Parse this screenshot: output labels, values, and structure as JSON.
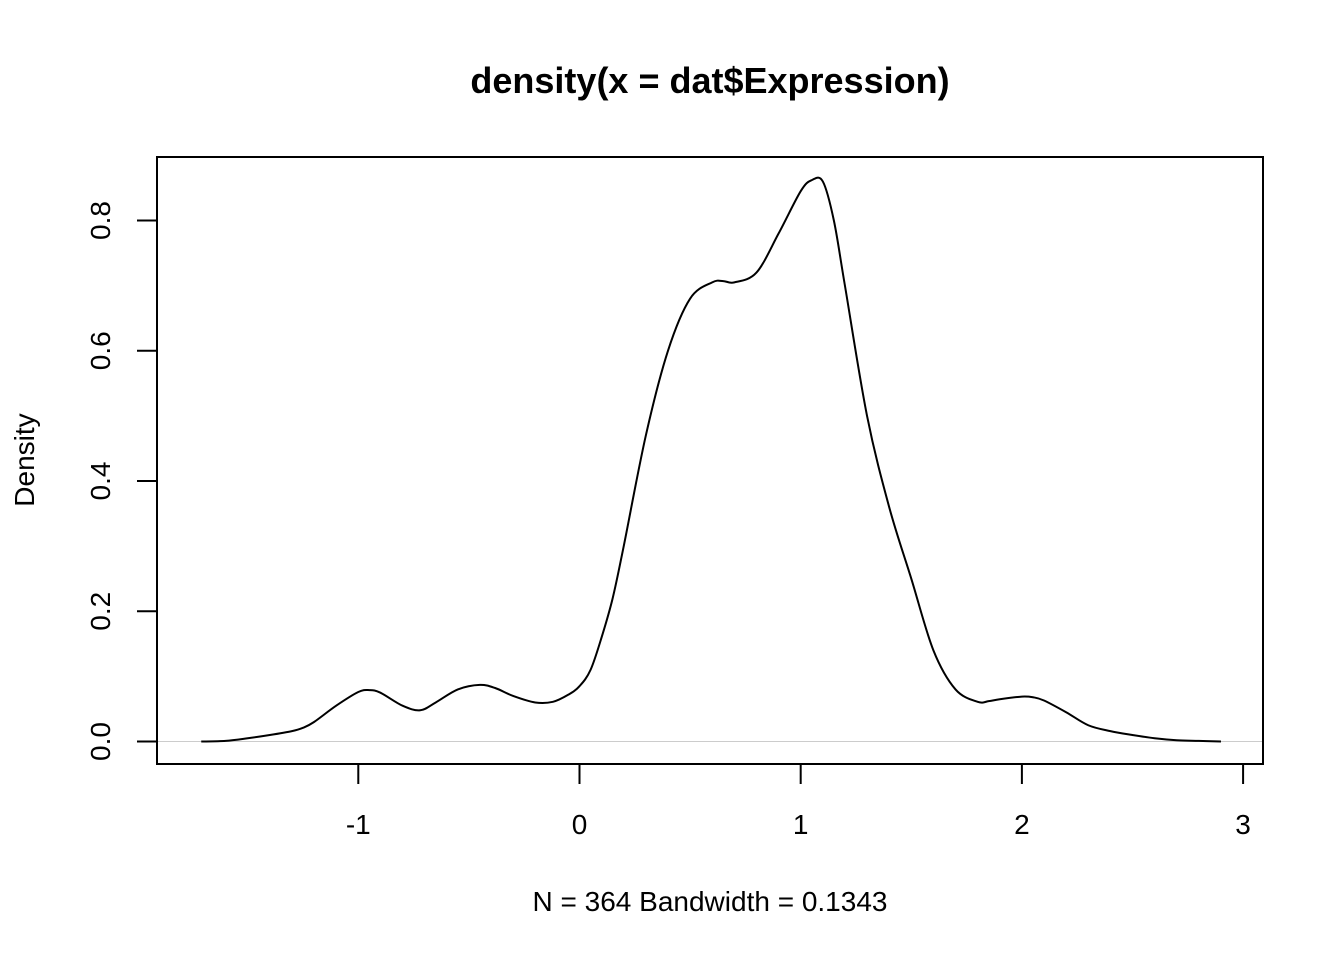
{
  "chart_data": {
    "type": "line",
    "title": "density(x = dat$Expression)",
    "xlabel": "N = 364   Bandwidth = 0.1343",
    "ylabel": "Density",
    "xlim": [
      -1.91,
      3.09
    ],
    "ylim": [
      -0.0345,
      0.8975
    ],
    "x_ticks": [
      {
        "value": -1,
        "label": "-1"
      },
      {
        "value": 0,
        "label": "0"
      },
      {
        "value": 1,
        "label": "1"
      },
      {
        "value": 2,
        "label": "2"
      },
      {
        "value": 3,
        "label": "3"
      }
    ],
    "y_ticks": [
      {
        "value": 0.0,
        "label": "0.0"
      },
      {
        "value": 0.2,
        "label": "0.2"
      },
      {
        "value": 0.4,
        "label": "0.4"
      },
      {
        "value": 0.6,
        "label": "0.6"
      },
      {
        "value": 0.8,
        "label": "0.8"
      }
    ],
    "baseline": 0,
    "grid": false,
    "series": [
      {
        "x": [
          -1.71,
          -1.6,
          -1.5,
          -1.4,
          -1.3,
          -1.25,
          -1.2,
          -1.1,
          -1.0,
          -0.95,
          -0.9,
          -0.8,
          -0.72,
          -0.65,
          -0.55,
          -0.45,
          -0.38,
          -0.3,
          -0.2,
          -0.12,
          -0.05,
          0.0,
          0.05,
          0.1,
          0.15,
          0.2,
          0.3,
          0.4,
          0.5,
          0.6,
          0.65,
          0.7,
          0.8,
          0.9,
          1.0,
          1.05,
          1.1,
          1.15,
          1.2,
          1.3,
          1.4,
          1.5,
          1.6,
          1.7,
          1.8,
          1.85,
          1.9,
          2.0,
          2.05,
          2.1,
          2.2,
          2.3,
          2.4,
          2.5,
          2.6,
          2.7,
          2.8,
          2.9
        ],
        "y": [
          0.0,
          0.001,
          0.005,
          0.01,
          0.016,
          0.021,
          0.03,
          0.055,
          0.076,
          0.079,
          0.075,
          0.055,
          0.048,
          0.06,
          0.08,
          0.087,
          0.082,
          0.07,
          0.06,
          0.061,
          0.072,
          0.085,
          0.11,
          0.16,
          0.22,
          0.3,
          0.47,
          0.6,
          0.68,
          0.705,
          0.707,
          0.705,
          0.72,
          0.78,
          0.845,
          0.862,
          0.86,
          0.8,
          0.7,
          0.5,
          0.36,
          0.25,
          0.14,
          0.08,
          0.061,
          0.062,
          0.065,
          0.069,
          0.068,
          0.063,
          0.045,
          0.025,
          0.016,
          0.01,
          0.005,
          0.002,
          0.001,
          0.0
        ]
      }
    ]
  }
}
